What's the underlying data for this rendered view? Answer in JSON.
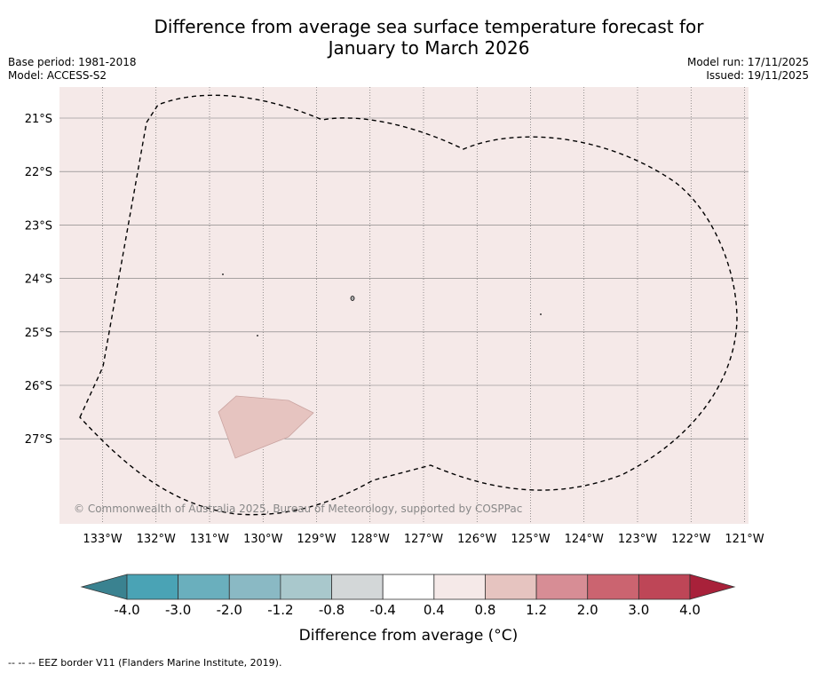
{
  "title": {
    "line1": "Difference from average sea surface temperature forecast for",
    "line2": "January to March 2026"
  },
  "meta_left": {
    "base_period": "Base period: 1981-2018",
    "model": "Model: ACCESS-S2"
  },
  "meta_right": {
    "model_run": "Model run: 17/11/2025",
    "issued": "Issued: 19/11/2025"
  },
  "map": {
    "lat_labels": [
      "21°S",
      "22°S",
      "23°S",
      "24°S",
      "25°S",
      "26°S",
      "27°S"
    ],
    "lon_labels": [
      "133°W",
      "132°W",
      "131°W",
      "130°W",
      "129°W",
      "128°W",
      "127°W",
      "126°W",
      "125°W",
      "124°W",
      "123°W",
      "122°W",
      "121°W"
    ],
    "attribution": "© Commonwealth of Australia 2025, Bureau of Meteorology, supported by COSPPac",
    "background_color": "#f5e9e8",
    "anomaly_patch_color": "#e6c4c0"
  },
  "colorbar": {
    "tick_labels": [
      "-4.0",
      "-3.0",
      "-2.0",
      "-1.2",
      "-0.8",
      "-0.4",
      "0.4",
      "0.8",
      "1.2",
      "2.0",
      "3.0",
      "4.0"
    ],
    "colors": [
      "#4aa3b5",
      "#6aafbd",
      "#8ab9c4",
      "#a9c8cc",
      "#d3d7d8",
      "#ffffff",
      "#f5e9e8",
      "#e6c4c0",
      "#d78d95",
      "#cb6470",
      "#be4657"
    ],
    "under_color": "#3a8290",
    "over_color": "#a8213a",
    "label": "Difference from average (°C)"
  },
  "footnote": "--  --  -- EEZ border V11 (Flanders Marine Institute, 2019)."
}
